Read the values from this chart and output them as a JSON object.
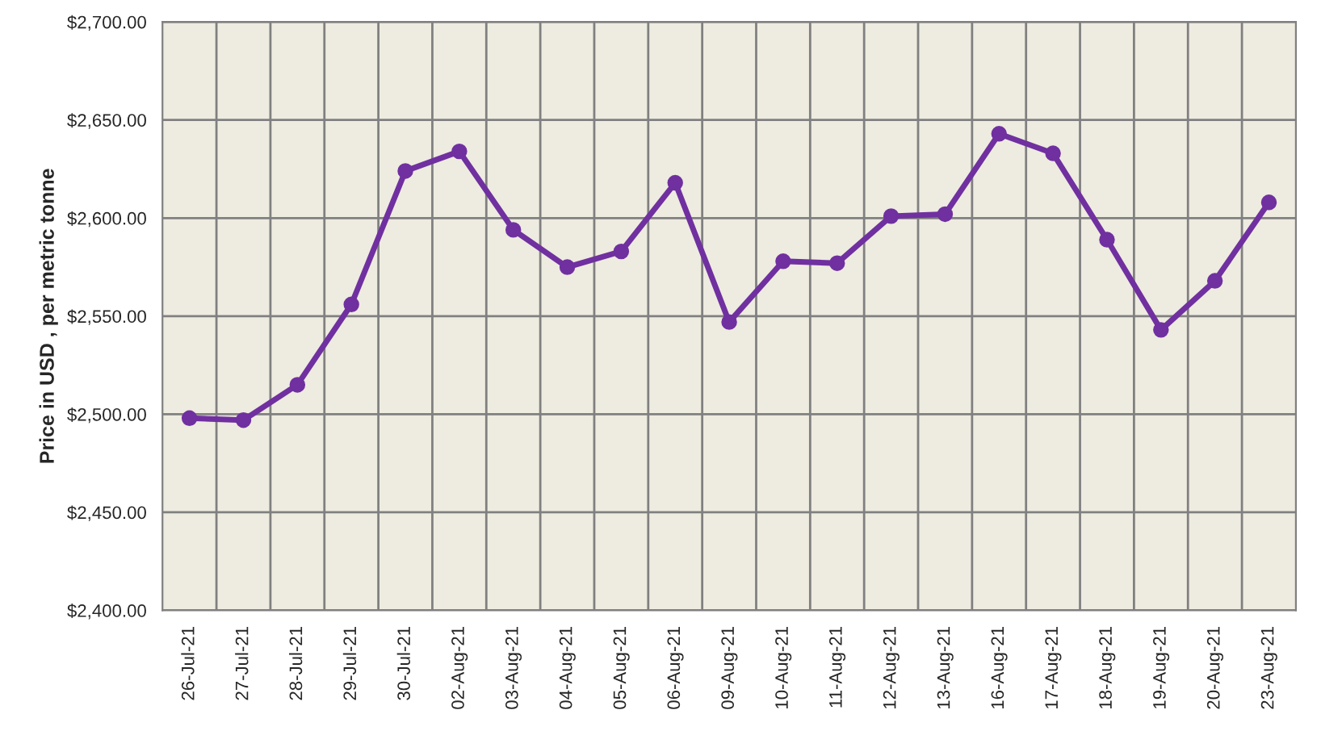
{
  "chart_data": {
    "type": "line",
    "ylabel": "Price in USD , per metric tonne",
    "categories": [
      "26-Jul-21",
      "27-Jul-21",
      "28-Jul-21",
      "29-Jul-21",
      "30-Jul-21",
      "02-Aug-21",
      "03-Aug-21",
      "04-Aug-21",
      "05-Aug-21",
      "06-Aug-21",
      "09-Aug-21",
      "10-Aug-21",
      "11-Aug-21",
      "12-Aug-21",
      "13-Aug-21",
      "16-Aug-21",
      "17-Aug-21",
      "18-Aug-21",
      "19-Aug-21",
      "20-Aug-21",
      "23-Aug-21"
    ],
    "series": [
      {
        "color": "#7030a0",
        "values": [
          2498,
          2497,
          2515,
          2556,
          2624,
          2634,
          2594,
          2575,
          2583,
          2618,
          2547,
          2578,
          2577,
          2601,
          2602,
          2643,
          2633,
          2589,
          2543,
          2568,
          2608
        ]
      }
    ],
    "ylim": [
      2400,
      2700
    ],
    "yticks": [
      {
        "value": 2400,
        "label": "$2,400.00"
      },
      {
        "value": 2450,
        "label": "$2,450.00"
      },
      {
        "value": 2500,
        "label": "$2,500.00"
      },
      {
        "value": 2550,
        "label": "$2,550.00"
      },
      {
        "value": 2600,
        "label": "$2,600.00"
      },
      {
        "value": 2650,
        "label": "$2,650.00"
      },
      {
        "value": 2700,
        "label": "$2,700.00"
      }
    ],
    "grid": true,
    "marker": "circle",
    "line_style": "solid",
    "legend": false
  }
}
